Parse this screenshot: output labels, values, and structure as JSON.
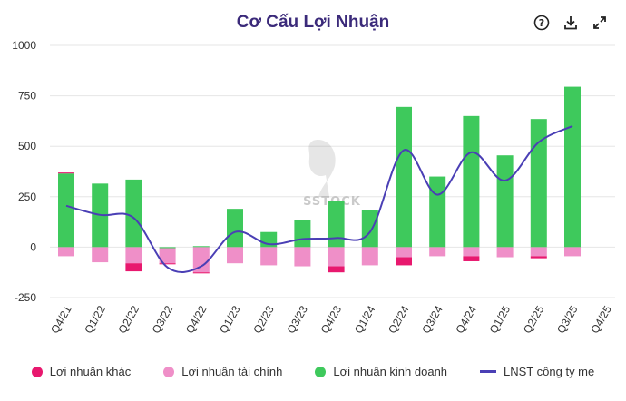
{
  "toolbar": {
    "help_icon": "help-circle-icon",
    "download_icon": "download-icon",
    "expand_icon": "expand-icon"
  },
  "watermark": "SSTOCK",
  "colors": {
    "khac": "#e8186e",
    "taichinh": "#ef8fc8",
    "kinhdoanh": "#3ec95c",
    "lnst": "#4a3fb5",
    "grid": "#e6e6e6",
    "axis_text": "#333333"
  },
  "chart_data": {
    "type": "bar",
    "title": "Cơ Cấu Lợi Nhuận",
    "categories": [
      "Q4/21",
      "Q1/22",
      "Q2/22",
      "Q3/22",
      "Q4/22",
      "Q1/23",
      "Q2/23",
      "Q3/23",
      "Q4/23",
      "Q1/24",
      "Q2/24",
      "Q3/24",
      "Q4/24",
      "Q1/25",
      "Q2/25",
      "Q3/25",
      "Q4/25"
    ],
    "ylim": [
      -250,
      1000
    ],
    "yticks": [
      -250,
      0,
      250,
      500,
      750,
      1000
    ],
    "ytick_labels": [
      "-250",
      "0",
      "250",
      "500",
      "750",
      "1000"
    ],
    "series": [
      {
        "name": "Lợi nhuận khác",
        "kind": "bar",
        "values": [
          5,
          0,
          -40,
          -5,
          -5,
          0,
          0,
          0,
          -30,
          0,
          -40,
          0,
          -25,
          0,
          -10,
          0,
          null
        ]
      },
      {
        "name": "Lợi nhuận tài chính",
        "kind": "bar",
        "values": [
          -45,
          -75,
          -80,
          -75,
          -125,
          -80,
          -90,
          -95,
          -95,
          -90,
          -50,
          -45,
          -45,
          -50,
          -45,
          -45,
          null
        ]
      },
      {
        "name": "Lợi nhuận kinh doanh",
        "kind": "bar",
        "values": [
          365,
          315,
          335,
          -5,
          5,
          190,
          75,
          135,
          230,
          185,
          695,
          350,
          650,
          455,
          635,
          795,
          null
        ]
      },
      {
        "name": "LNST công ty mẹ",
        "kind": "line",
        "values": [
          205,
          160,
          145,
          -100,
          -95,
          75,
          15,
          40,
          45,
          75,
          480,
          260,
          470,
          330,
          520,
          600,
          null
        ]
      }
    ]
  }
}
